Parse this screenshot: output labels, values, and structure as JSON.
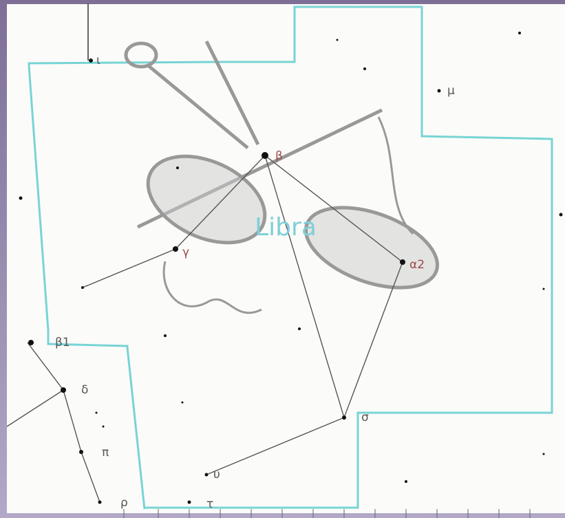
{
  "map": {
    "title": "Libra",
    "labels": [
      "ι",
      "μ",
      "β",
      "γ",
      "α2",
      "β1",
      "δ",
      "π",
      "ρ",
      "σ",
      "υ",
      "τ"
    ]
  }
}
